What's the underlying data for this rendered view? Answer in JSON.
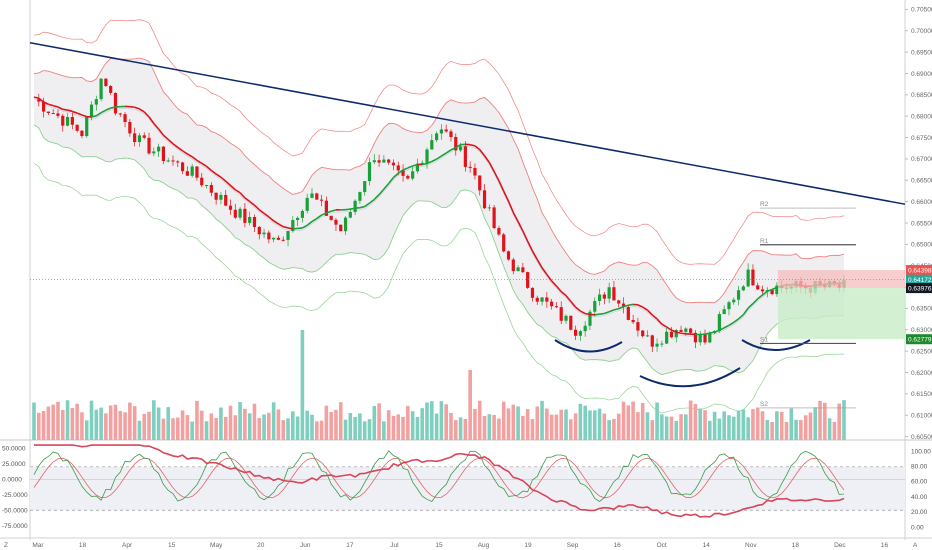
{
  "chart_data": [
    {
      "type": "candlestick",
      "y_ticks": [
        "0.70500",
        "0.70000",
        "0.69500",
        "0.69000",
        "0.68500",
        "0.68000",
        "0.67500",
        "0.67000",
        "0.66500",
        "0.66000",
        "0.65500",
        "0.65000",
        "0.64500",
        "0.64000",
        "0.63500",
        "0.63000",
        "0.62500",
        "0.62000",
        "0.61500",
        "0.61000",
        "0.60500"
      ],
      "x_ticks": [
        "Mar",
        "18",
        "Apr",
        "15",
        "May",
        "20",
        "Jun",
        "17",
        "Jul",
        "15",
        "Aug",
        "19",
        "Sep",
        "16",
        "Oct",
        "14",
        "Nov",
        "18",
        "Dec",
        "16"
      ],
      "ylim": [
        0.6042,
        0.7072
      ],
      "price_tags": [
        {
          "label": "0.64398",
          "value": 0.64398,
          "color": "#ef5350"
        },
        {
          "label": "0.64172",
          "value": 0.64172,
          "color": "#26a69a"
        },
        {
          "label": "0.63976",
          "value": 0.63976,
          "color": "#131722"
        },
        {
          "label": "0.62779",
          "value": 0.62779,
          "color": "#1b8a2a"
        }
      ],
      "pivots": [
        {
          "label": "R2",
          "value": 0.6585
        },
        {
          "label": "R1",
          "value": 0.6499
        },
        {
          "label": "S1",
          "value": 0.6268
        },
        {
          "label": "S2",
          "value": 0.6117
        }
      ],
      "trendline": {
        "from": [
          0.0,
          0.6972
        ],
        "to": [
          1.0,
          0.6594
        ]
      },
      "colors": {
        "up": "#1aa038",
        "down": "#e0121a",
        "band_upper": "#f08080",
        "band_lower": "#8fd08f",
        "band_fill": "#e9e9ee",
        "trendline": "#0d2a6b"
      }
    },
    {
      "type": "line",
      "y_ticks": [
        "50.0000",
        "25.0000",
        "0.0000",
        "-25.0000",
        "-50.0000",
        "-75.0000"
      ],
      "right_ticks": [
        "100.00",
        "80.00",
        "60.00",
        "40.00",
        "20.00",
        "0.00"
      ],
      "ylim": [
        -85,
        60
      ]
    }
  ],
  "footer": {
    "left_icon": "Z",
    "right_icon": "A"
  }
}
